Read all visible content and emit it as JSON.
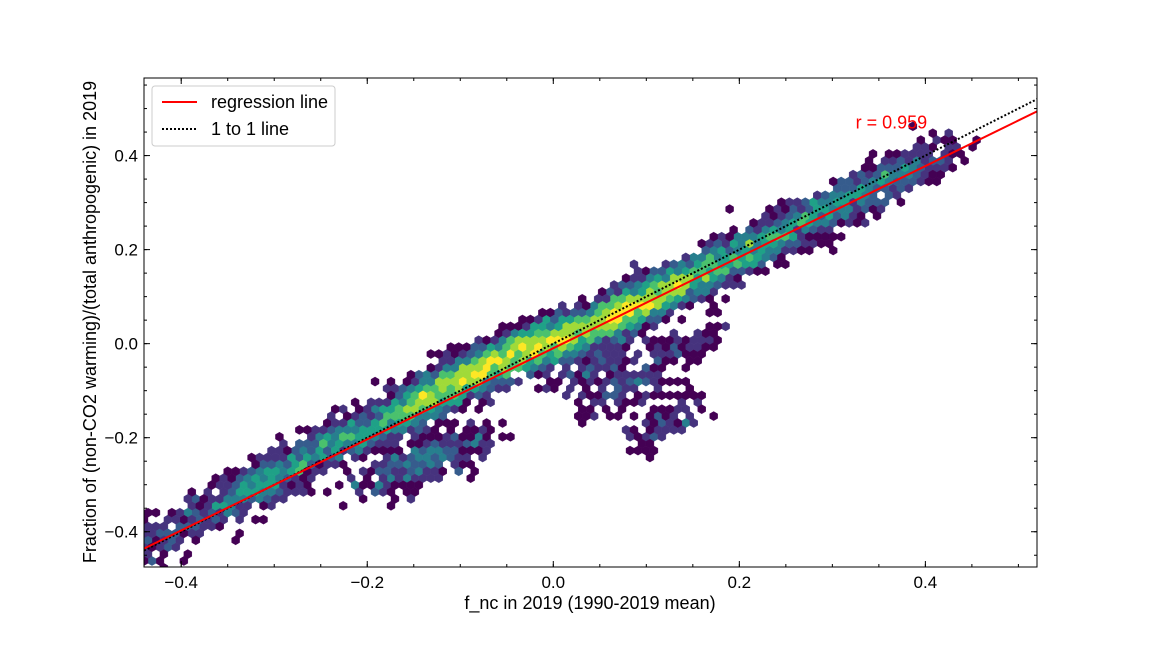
{
  "chart_data": {
    "type": "scatter",
    "subtype": "hexbin-density",
    "xlabel": "f_nc in 2019 (1990-2019 mean)",
    "ylabel": "Fraction of (non-CO2 warming)/(total anthropogenic) in 2019",
    "xlim": [
      -0.44,
      0.52
    ],
    "ylim": [
      -0.475,
      0.565
    ],
    "x_ticks": [
      {
        "value": -0.4,
        "label": "−0.4"
      },
      {
        "value": -0.2,
        "label": "−0.2"
      },
      {
        "value": 0.0,
        "label": "0.0"
      },
      {
        "value": 0.2,
        "label": "0.2"
      },
      {
        "value": 0.4,
        "label": "0.4"
      }
    ],
    "y_ticks": [
      {
        "value": -0.4,
        "label": "−0.4"
      },
      {
        "value": -0.2,
        "label": "−0.2"
      },
      {
        "value": 0.0,
        "label": "0.0"
      },
      {
        "value": 0.2,
        "label": "0.2"
      },
      {
        "value": 0.4,
        "label": "0.4"
      }
    ],
    "grid": false,
    "legend": {
      "placement": "upper-left",
      "entries": [
        {
          "label": "regression line",
          "color": "#ff0000",
          "style": "solid"
        },
        {
          "label": "1 to 1 line",
          "color": "#000000",
          "style": "dotted"
        }
      ]
    },
    "annotation": {
      "text": "r = 0.959",
      "x": 0.325,
      "y": 0.47,
      "color": "#ff0000"
    },
    "series": [
      {
        "name": "regression line",
        "type": "line",
        "color": "#ff0000",
        "x": [
          -0.44,
          0.52
        ],
        "y": [
          -0.436,
          0.494
        ]
      },
      {
        "name": "1 to 1 line",
        "type": "line",
        "color": "#000000",
        "x": [
          -0.44,
          0.52
        ],
        "y": [
          -0.44,
          0.52
        ]
      }
    ],
    "density_clusters": [
      {
        "x": -0.45,
        "y": -0.45,
        "count": 10
      },
      {
        "x": -0.4,
        "y": -0.39,
        "count": 18
      },
      {
        "x": -0.35,
        "y": -0.34,
        "count": 22
      },
      {
        "x": -0.32,
        "y": -0.3,
        "count": 22
      },
      {
        "x": -0.3,
        "y": -0.3,
        "count": 18
      },
      {
        "x": -0.27,
        "y": -0.25,
        "count": 22
      },
      {
        "x": -0.25,
        "y": -0.22,
        "count": 20
      },
      {
        "x": -0.22,
        "y": -0.2,
        "count": 20
      },
      {
        "x": -0.19,
        "y": -0.18,
        "count": 30
      },
      {
        "x": -0.16,
        "y": -0.14,
        "count": 40
      },
      {
        "x": -0.13,
        "y": -0.12,
        "count": 48
      },
      {
        "x": -0.11,
        "y": -0.08,
        "count": 52
      },
      {
        "x": -0.08,
        "y": -0.06,
        "count": 55
      },
      {
        "x": -0.05,
        "y": -0.03,
        "count": 55
      },
      {
        "x": -0.03,
        "y": -0.01,
        "count": 55
      },
      {
        "x": 0.0,
        "y": 0.0,
        "count": 55
      },
      {
        "x": 0.03,
        "y": 0.03,
        "count": 55
      },
      {
        "x": 0.06,
        "y": 0.05,
        "count": 50
      },
      {
        "x": 0.08,
        "y": 0.07,
        "count": 55
      },
      {
        "x": 0.1,
        "y": 0.1,
        "count": 55
      },
      {
        "x": 0.13,
        "y": 0.12,
        "count": 45
      },
      {
        "x": 0.16,
        "y": 0.15,
        "count": 40
      },
      {
        "x": 0.19,
        "y": 0.18,
        "count": 36
      },
      {
        "x": 0.22,
        "y": 0.21,
        "count": 30
      },
      {
        "x": 0.25,
        "y": 0.24,
        "count": 28
      },
      {
        "x": 0.28,
        "y": 0.27,
        "count": 24
      },
      {
        "x": 0.31,
        "y": 0.3,
        "count": 22
      },
      {
        "x": 0.34,
        "y": 0.33,
        "count": 20
      },
      {
        "x": 0.37,
        "y": 0.36,
        "count": 18
      },
      {
        "x": 0.4,
        "y": 0.39,
        "count": 15
      },
      {
        "x": -0.18,
        "y": -0.28,
        "count": 18
      },
      {
        "x": -0.14,
        "y": -0.25,
        "count": 18
      },
      {
        "x": -0.1,
        "y": -0.22,
        "count": 18
      },
      {
        "x": 0.04,
        "y": -0.05,
        "count": 18
      },
      {
        "x": 0.08,
        "y": -0.1,
        "count": 16
      },
      {
        "x": 0.12,
        "y": -0.17,
        "count": 14
      },
      {
        "x": 0.14,
        "y": 0.0,
        "count": 12
      }
    ],
    "colormap": [
      "#440154",
      "#46337e",
      "#365c8d",
      "#277f8e",
      "#1fa187",
      "#4ac16d",
      "#a0da39",
      "#fde725"
    ]
  }
}
